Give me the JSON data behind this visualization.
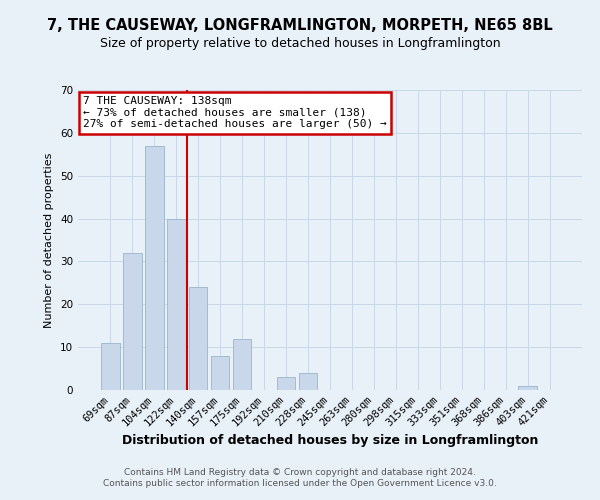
{
  "title": "7, THE CAUSEWAY, LONGFRAMLINGTON, MORPETH, NE65 8BL",
  "subtitle": "Size of property relative to detached houses in Longframlington",
  "xlabel": "Distribution of detached houses by size in Longframlington",
  "ylabel": "Number of detached properties",
  "footer_line1": "Contains HM Land Registry data © Crown copyright and database right 2024.",
  "footer_line2": "Contains public sector information licensed under the Open Government Licence v3.0.",
  "annotation_line1": "7 THE CAUSEWAY: 138sqm",
  "annotation_line2": "← 73% of detached houses are smaller (138)",
  "annotation_line3": "27% of semi-detached houses are larger (50) →",
  "bar_labels": [
    "69sqm",
    "87sqm",
    "104sqm",
    "122sqm",
    "140sqm",
    "157sqm",
    "175sqm",
    "192sqm",
    "210sqm",
    "228sqm",
    "245sqm",
    "263sqm",
    "280sqm",
    "298sqm",
    "315sqm",
    "333sqm",
    "351sqm",
    "368sqm",
    "386sqm",
    "403sqm",
    "421sqm"
  ],
  "bar_values": [
    11,
    32,
    57,
    40,
    24,
    8,
    12,
    0,
    3,
    4,
    0,
    0,
    0,
    0,
    0,
    0,
    0,
    0,
    0,
    1,
    0
  ],
  "bar_color": "#c8d8ea",
  "bar_edge_color": "#9ab5cc",
  "ref_line_color": "#cc0000",
  "ylim": [
    0,
    70
  ],
  "yticks": [
    0,
    10,
    20,
    30,
    40,
    50,
    60,
    70
  ],
  "grid_color": "#c8d8e8",
  "background_color": "#e8f0f8",
  "annotation_box_edge_color": "#cc0000",
  "annotation_box_facecolor": "#ffffff",
  "title_fontsize": 10.5,
  "subtitle_fontsize": 9,
  "xlabel_fontsize": 9,
  "ylabel_fontsize": 8,
  "tick_fontsize": 7.5,
  "footer_fontsize": 6.5
}
